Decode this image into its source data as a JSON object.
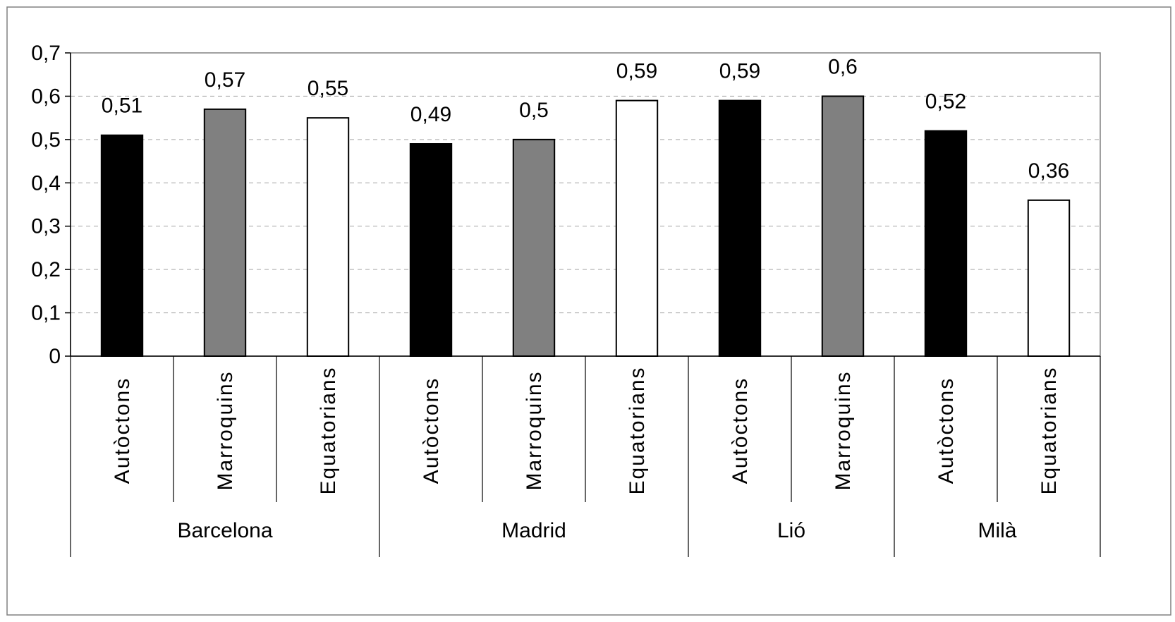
{
  "colors": {
    "black": "#000000",
    "gray": "#808080",
    "white": "#ffffff",
    "gridline": "#a6a6a6",
    "frame": "#808080"
  },
  "chart_data": {
    "type": "bar",
    "ylim": [
      0,
      0.7
    ],
    "ytick_step": 0.1,
    "grid": true,
    "ytick_labels": [
      "0",
      "0,1",
      "0,2",
      "0,3",
      "0,4",
      "0,5",
      "0,6",
      "0,7"
    ],
    "groups": [
      {
        "name": "Barcelona",
        "bars": [
          {
            "category": "Autòctons",
            "value": 0.51,
            "label": "0,51",
            "fill": "black"
          },
          {
            "category": "Marroquins",
            "value": 0.57,
            "label": "0,57",
            "fill": "gray"
          },
          {
            "category": "Equatorians",
            "value": 0.55,
            "label": "0,55",
            "fill": "white"
          }
        ]
      },
      {
        "name": "Madrid",
        "bars": [
          {
            "category": "Autòctons",
            "value": 0.49,
            "label": "0,49",
            "fill": "black"
          },
          {
            "category": "Marroquins",
            "value": 0.5,
            "label": "0,5",
            "fill": "gray"
          },
          {
            "category": "Equatorians",
            "value": 0.59,
            "label": "0,59",
            "fill": "white"
          }
        ]
      },
      {
        "name": "Lió",
        "bars": [
          {
            "category": "Autòctons",
            "value": 0.59,
            "label": "0,59",
            "fill": "black"
          },
          {
            "category": "Marroquins",
            "value": 0.6,
            "label": "0,6",
            "fill": "gray"
          }
        ]
      },
      {
        "name": "Milà",
        "bars": [
          {
            "category": "Autòctons",
            "value": 0.52,
            "label": "0,52",
            "fill": "black"
          },
          {
            "category": "Equatorians",
            "value": 0.36,
            "label": "0,36",
            "fill": "white"
          }
        ]
      }
    ]
  }
}
